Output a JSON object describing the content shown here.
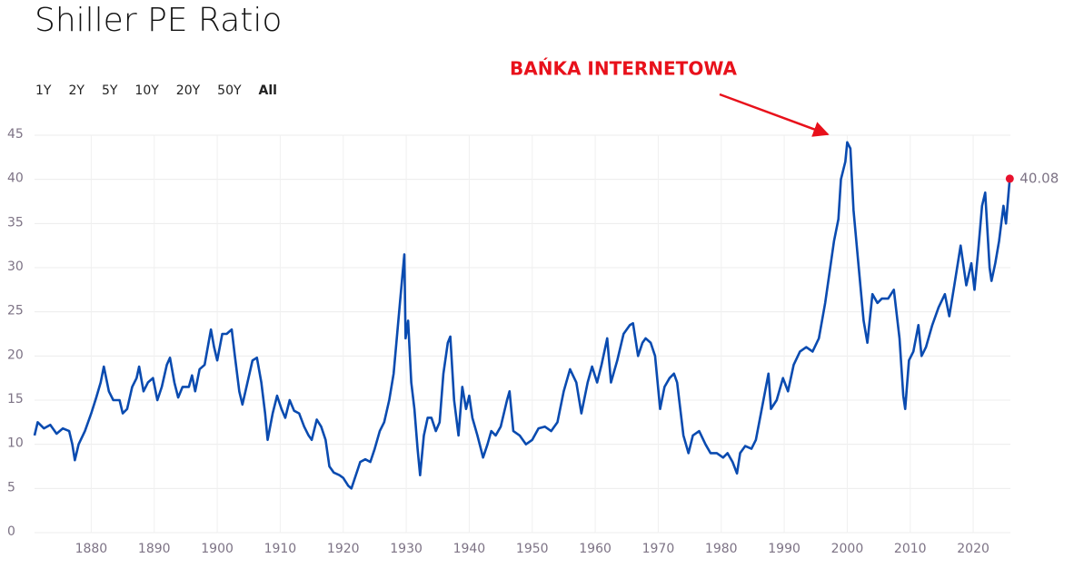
{
  "chart_data": {
    "type": "line",
    "title": "Shiller PE Ratio",
    "range_options": [
      "1Y",
      "2Y",
      "5Y",
      "10Y",
      "20Y",
      "50Y",
      "All"
    ],
    "active_range_index": 6,
    "annotation": "BAŃKA INTERNETOWA",
    "color": "#0a4bb0",
    "last_point_color": "#e8112d",
    "annotation_color": "#e8111b",
    "grid": true,
    "xlim": [
      1871,
      2025.9
    ],
    "ylim": [
      0,
      45
    ],
    "xticks": [
      1880,
      1890,
      1900,
      1910,
      1920,
      1930,
      1940,
      1950,
      1960,
      1970,
      1980,
      1990,
      2000,
      2010,
      2020
    ],
    "yticks": [
      0,
      5,
      10,
      15,
      20,
      25,
      30,
      35,
      40,
      45
    ],
    "x": [
      1871.0,
      1871.5,
      1872.5,
      1873.5,
      1874.5,
      1875.5,
      1876.5,
      1877.0,
      1877.4,
      1878.0,
      1879.0,
      1880.0,
      1880.8,
      1881.5,
      1882.0,
      1882.8,
      1883.5,
      1884.5,
      1885.0,
      1885.7,
      1886.5,
      1887.2,
      1887.6,
      1888.3,
      1889.0,
      1889.8,
      1890.5,
      1891.2,
      1892.0,
      1892.5,
      1893.2,
      1893.8,
      1894.5,
      1895.5,
      1896.0,
      1896.5,
      1897.2,
      1898.0,
      1899.0,
      1899.5,
      1900.0,
      1900.8,
      1901.5,
      1902.3,
      1902.8,
      1903.5,
      1904.0,
      1904.8,
      1905.6,
      1906.3,
      1907.0,
      1907.6,
      1908.0,
      1908.8,
      1909.5,
      1910.2,
      1910.8,
      1911.5,
      1912.2,
      1913.0,
      1913.8,
      1914.5,
      1915.0,
      1915.8,
      1916.5,
      1917.2,
      1917.8,
      1918.5,
      1919.4,
      1920.0,
      1920.8,
      1921.3,
      1922.0,
      1922.7,
      1923.5,
      1924.3,
      1925.0,
      1925.8,
      1926.5,
      1927.3,
      1928.0,
      1928.5,
      1929.0,
      1929.7,
      1929.9,
      1930.3,
      1930.8,
      1931.3,
      1931.8,
      1932.2,
      1932.8,
      1933.4,
      1934.0,
      1934.7,
      1935.3,
      1935.9,
      1936.6,
      1937.0,
      1937.6,
      1938.3,
      1938.9,
      1939.5,
      1940.0,
      1940.5,
      1941.3,
      1942.2,
      1942.9,
      1943.5,
      1944.2,
      1945.0,
      1946.0,
      1946.4,
      1947.0,
      1948.0,
      1949.0,
      1950.0,
      1951.0,
      1952.0,
      1953.0,
      1954.0,
      1955.0,
      1956.0,
      1957.0,
      1957.8,
      1958.8,
      1959.5,
      1960.3,
      1961.0,
      1961.9,
      1962.5,
      1963.5,
      1964.5,
      1965.5,
      1966.0,
      1966.8,
      1967.5,
      1968.0,
      1968.8,
      1969.5,
      1970.3,
      1971.0,
      1971.8,
      1972.5,
      1973.0,
      1974.0,
      1974.8,
      1975.5,
      1976.5,
      1977.5,
      1978.3,
      1979.3,
      1980.3,
      1981.0,
      1981.8,
      1982.5,
      1983.0,
      1983.8,
      1984.8,
      1985.5,
      1986.3,
      1987.5,
      1987.9,
      1988.8,
      1989.8,
      1990.6,
      1991.5,
      1992.5,
      1993.5,
      1994.5,
      1995.5,
      1996.5,
      1997.3,
      1997.9,
      1998.6,
      1999.0,
      1999.7,
      2000.0,
      2000.5,
      2001.0,
      2001.7,
      2002.6,
      2003.2,
      2004.0,
      2004.8,
      2005.5,
      2006.5,
      2007.4,
      2008.3,
      2008.9,
      2009.2,
      2009.8,
      2010.5,
      2011.3,
      2011.8,
      2012.5,
      2013.5,
      2014.5,
      2015.5,
      2016.2,
      2017.0,
      2018.0,
      2018.9,
      2019.7,
      2020.2,
      2020.8,
      2021.4,
      2021.9,
      2022.6,
      2022.9,
      2023.5,
      2024.1,
      2024.8,
      2025.2,
      2025.8
    ],
    "values": [
      11.0,
      12.5,
      11.8,
      12.2,
      11.2,
      11.8,
      11.5,
      10.0,
      8.2,
      10.0,
      11.5,
      13.5,
      15.3,
      17.0,
      18.8,
      16.0,
      15.0,
      15.0,
      13.5,
      14.0,
      16.5,
      17.5,
      18.8,
      16.0,
      17.0,
      17.5,
      15.0,
      16.5,
      19.0,
      19.8,
      17.0,
      15.3,
      16.5,
      16.5,
      17.8,
      16.0,
      18.5,
      19.0,
      23.0,
      21.0,
      19.5,
      22.5,
      22.5,
      23.0,
      20.0,
      16.0,
      14.5,
      17.0,
      19.5,
      19.8,
      17.0,
      13.5,
      10.5,
      13.5,
      15.5,
      14.0,
      13.0,
      15.0,
      13.8,
      13.5,
      12.0,
      11.0,
      10.5,
      12.8,
      12.0,
      10.5,
      7.5,
      6.8,
      6.5,
      6.2,
      5.3,
      5.0,
      6.5,
      8.0,
      8.3,
      8.0,
      9.5,
      11.5,
      12.5,
      15.0,
      18.0,
      22.0,
      26.0,
      31.5,
      22.0,
      24.0,
      17.0,
      14.0,
      9.5,
      6.5,
      11.0,
      13.0,
      13.0,
      11.5,
      12.5,
      18.0,
      21.5,
      22.2,
      15.0,
      11.0,
      16.5,
      14.0,
      15.5,
      13.0,
      11.0,
      8.5,
      10.0,
      11.5,
      11.0,
      12.0,
      15.0,
      16.0,
      11.5,
      11.0,
      10.0,
      10.5,
      11.8,
      12.0,
      11.5,
      12.5,
      16.0,
      18.5,
      17.0,
      13.5,
      17.0,
      18.8,
      17.0,
      19.0,
      22.0,
      17.0,
      19.5,
      22.5,
      23.5,
      23.7,
      20.0,
      21.5,
      22.0,
      21.5,
      20.0,
      14.0,
      16.5,
      17.5,
      18.0,
      17.0,
      11.0,
      9.0,
      11.0,
      11.5,
      10.0,
      9.0,
      9.0,
      8.5,
      9.0,
      8.0,
      6.7,
      9.0,
      9.8,
      9.5,
      10.5,
      13.5,
      18.0,
      14.0,
      15.0,
      17.5,
      16.0,
      19.0,
      20.5,
      21.0,
      20.5,
      22.0,
      26.0,
      30.0,
      33.0,
      35.5,
      40.0,
      42.0,
      44.2,
      43.5,
      36.5,
      31.0,
      24.0,
      21.5,
      27.0,
      26.0,
      26.5,
      26.5,
      27.5,
      22.0,
      15.5,
      14.0,
      19.5,
      20.5,
      23.5,
      20.0,
      21.0,
      23.5,
      25.5,
      27.0,
      24.5,
      28.0,
      32.5,
      28.0,
      30.5,
      27.5,
      32.0,
      37.0,
      38.5,
      30.0,
      28.5,
      30.5,
      33.0,
      37.0,
      35.0,
      40.08
    ]
  }
}
